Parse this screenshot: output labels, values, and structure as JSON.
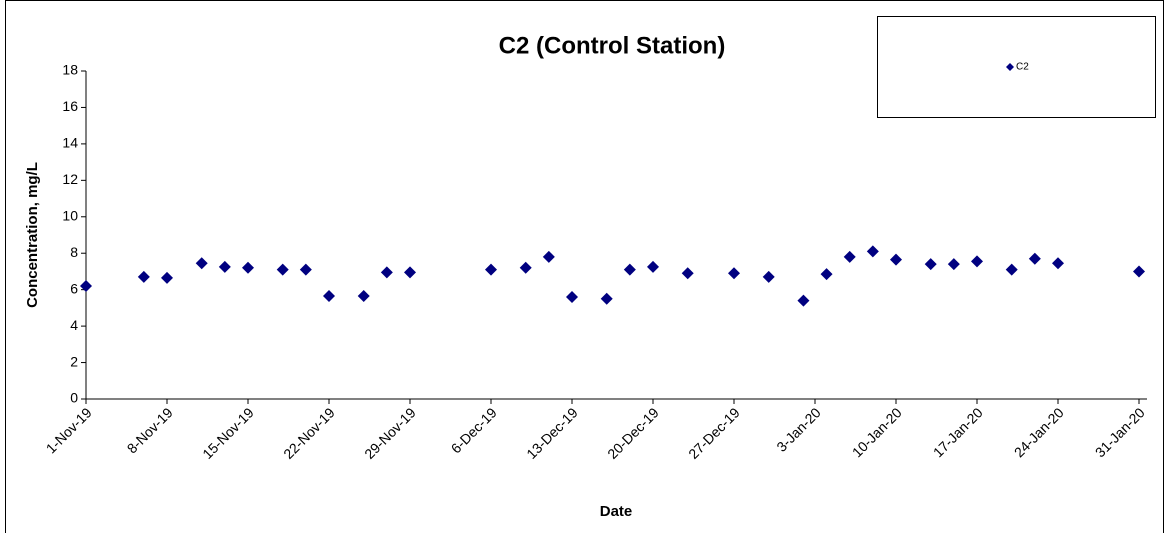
{
  "chart_data": {
    "type": "scatter",
    "title": "C2 (Control Station)",
    "x_label": "Date",
    "y_label": "Concentration, mg/L",
    "series": [
      {
        "name": "C2",
        "color": "#000080",
        "x": [
          "2019-11-01",
          "2019-11-06",
          "2019-11-08",
          "2019-11-11",
          "2019-11-13",
          "2019-11-15",
          "2019-11-18",
          "2019-11-20",
          "2019-11-22",
          "2019-11-25",
          "2019-11-27",
          "2019-11-29",
          "2019-12-06",
          "2019-12-09",
          "2019-12-11",
          "2019-12-13",
          "2019-12-16",
          "2019-12-18",
          "2019-12-20",
          "2019-12-23",
          "2019-12-27",
          "2019-12-30",
          "2020-01-02",
          "2020-01-04",
          "2020-01-06",
          "2020-01-08",
          "2020-01-10",
          "2020-01-13",
          "2020-01-15",
          "2020-01-17",
          "2020-01-20",
          "2020-01-22",
          "2020-01-24",
          "2020-01-31"
        ],
        "values": [
          6.2,
          6.7,
          6.65,
          7.45,
          7.25,
          7.2,
          7.1,
          7.1,
          5.65,
          5.65,
          6.95,
          6.95,
          7.1,
          7.2,
          7.8,
          5.6,
          5.5,
          7.1,
          7.25,
          6.9,
          6.9,
          6.7,
          5.4,
          6.85,
          7.8,
          8.1,
          7.65,
          7.4,
          7.4,
          7.55,
          7.1,
          7.7,
          7.45,
          7.0
        ]
      }
    ],
    "xlim": [
      "2019-11-01",
      "2020-01-31"
    ],
    "xticks": [
      {
        "value": "2019-11-01",
        "label": "1-Nov-19"
      },
      {
        "value": "2019-11-08",
        "label": "8-Nov-19"
      },
      {
        "value": "2019-11-15",
        "label": "15-Nov-19"
      },
      {
        "value": "2019-11-22",
        "label": "22-Nov-19"
      },
      {
        "value": "2019-11-29",
        "label": "29-Nov-19"
      },
      {
        "value": "2019-12-06",
        "label": "6-Dec-19"
      },
      {
        "value": "2019-12-13",
        "label": "13-Dec-19"
      },
      {
        "value": "2019-12-20",
        "label": "20-Dec-19"
      },
      {
        "value": "2019-12-27",
        "label": "27-Dec-19"
      },
      {
        "value": "2020-01-03",
        "label": "3-Jan-20"
      },
      {
        "value": "2020-01-10",
        "label": "10-Jan-20"
      },
      {
        "value": "2020-01-17",
        "label": "17-Jan-20"
      },
      {
        "value": "2020-01-24",
        "label": "24-Jan-20"
      },
      {
        "value": "2020-01-31",
        "label": "31-Jan-20"
      }
    ],
    "ylim": [
      0,
      18
    ],
    "yticks": [
      0,
      2,
      4,
      6,
      8,
      10,
      12,
      14,
      16,
      18
    ],
    "grid": false,
    "legend": "top-right"
  }
}
